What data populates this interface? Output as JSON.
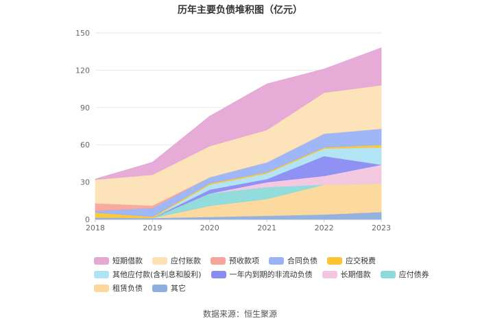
{
  "title": "历年主要负债堆积图（亿元）",
  "source": "数据来源：恒生聚源",
  "chart_data": {
    "type": "area",
    "stacked": true,
    "title": "历年主要负债堆积图（亿元）",
    "categories": [
      "2018",
      "2019",
      "2020",
      "2021",
      "2022",
      "2023"
    ],
    "ylim": [
      0,
      150
    ],
    "yticks": [
      0,
      30,
      60,
      90,
      120,
      150
    ],
    "grid": true,
    "legend_position": "bottom",
    "series": [
      {
        "name": "其它",
        "color": "#8eaede",
        "values": [
          1.5,
          1.2,
          2.0,
          3.0,
          4.0,
          6.0
        ]
      },
      {
        "name": "租赁负债",
        "color": "#fcd79a",
        "values": [
          0,
          0,
          9.0,
          13.5,
          24.0,
          23.0
        ]
      },
      {
        "name": "应付债券",
        "color": "#8cdada",
        "values": [
          0,
          0,
          10.0,
          9.5,
          0,
          0
        ]
      },
      {
        "name": "长期借款",
        "color": "#f2c6e0",
        "values": [
          0,
          0,
          0,
          4.0,
          7.0,
          15.0
        ]
      },
      {
        "name": "一年内到期的非流动负债",
        "color": "#8a8cf2",
        "values": [
          0,
          0,
          3.0,
          2.5,
          16.0,
          0
        ]
      },
      {
        "name": "其他应付款(含利息和股利)",
        "color": "#aee3f4",
        "values": [
          0,
          0,
          4.0,
          4.5,
          6.0,
          14.0
        ]
      },
      {
        "name": "应交税费",
        "color": "#fbc632",
        "values": [
          4.0,
          1.0,
          1.0,
          1.0,
          1.0,
          2.0
        ]
      },
      {
        "name": "合同负债",
        "color": "#9ab3f6",
        "values": [
          1.5,
          7.0,
          5.0,
          8.0,
          11.0,
          13.0
        ]
      },
      {
        "name": "预收款项",
        "color": "#f7a59b",
        "values": [
          6.0,
          2.0,
          0,
          0,
          0,
          0
        ]
      },
      {
        "name": "应付账款",
        "color": "#fde1b5",
        "values": [
          19.0,
          24.8,
          25.0,
          26.0,
          33.0,
          35.0
        ]
      },
      {
        "name": "短期借款",
        "color": "#e5a7d4",
        "values": [
          0.5,
          10.0,
          24.0,
          37.0,
          19.0,
          30.0
        ]
      }
    ],
    "legend_order": [
      "短期借款",
      "应付账款",
      "预收款项",
      "合同负债",
      "应交税费",
      "其他应付款(含利息和股利)",
      "一年内到期的非流动负债",
      "长期借款",
      "应付债券",
      "租赁负债",
      "其它"
    ]
  }
}
